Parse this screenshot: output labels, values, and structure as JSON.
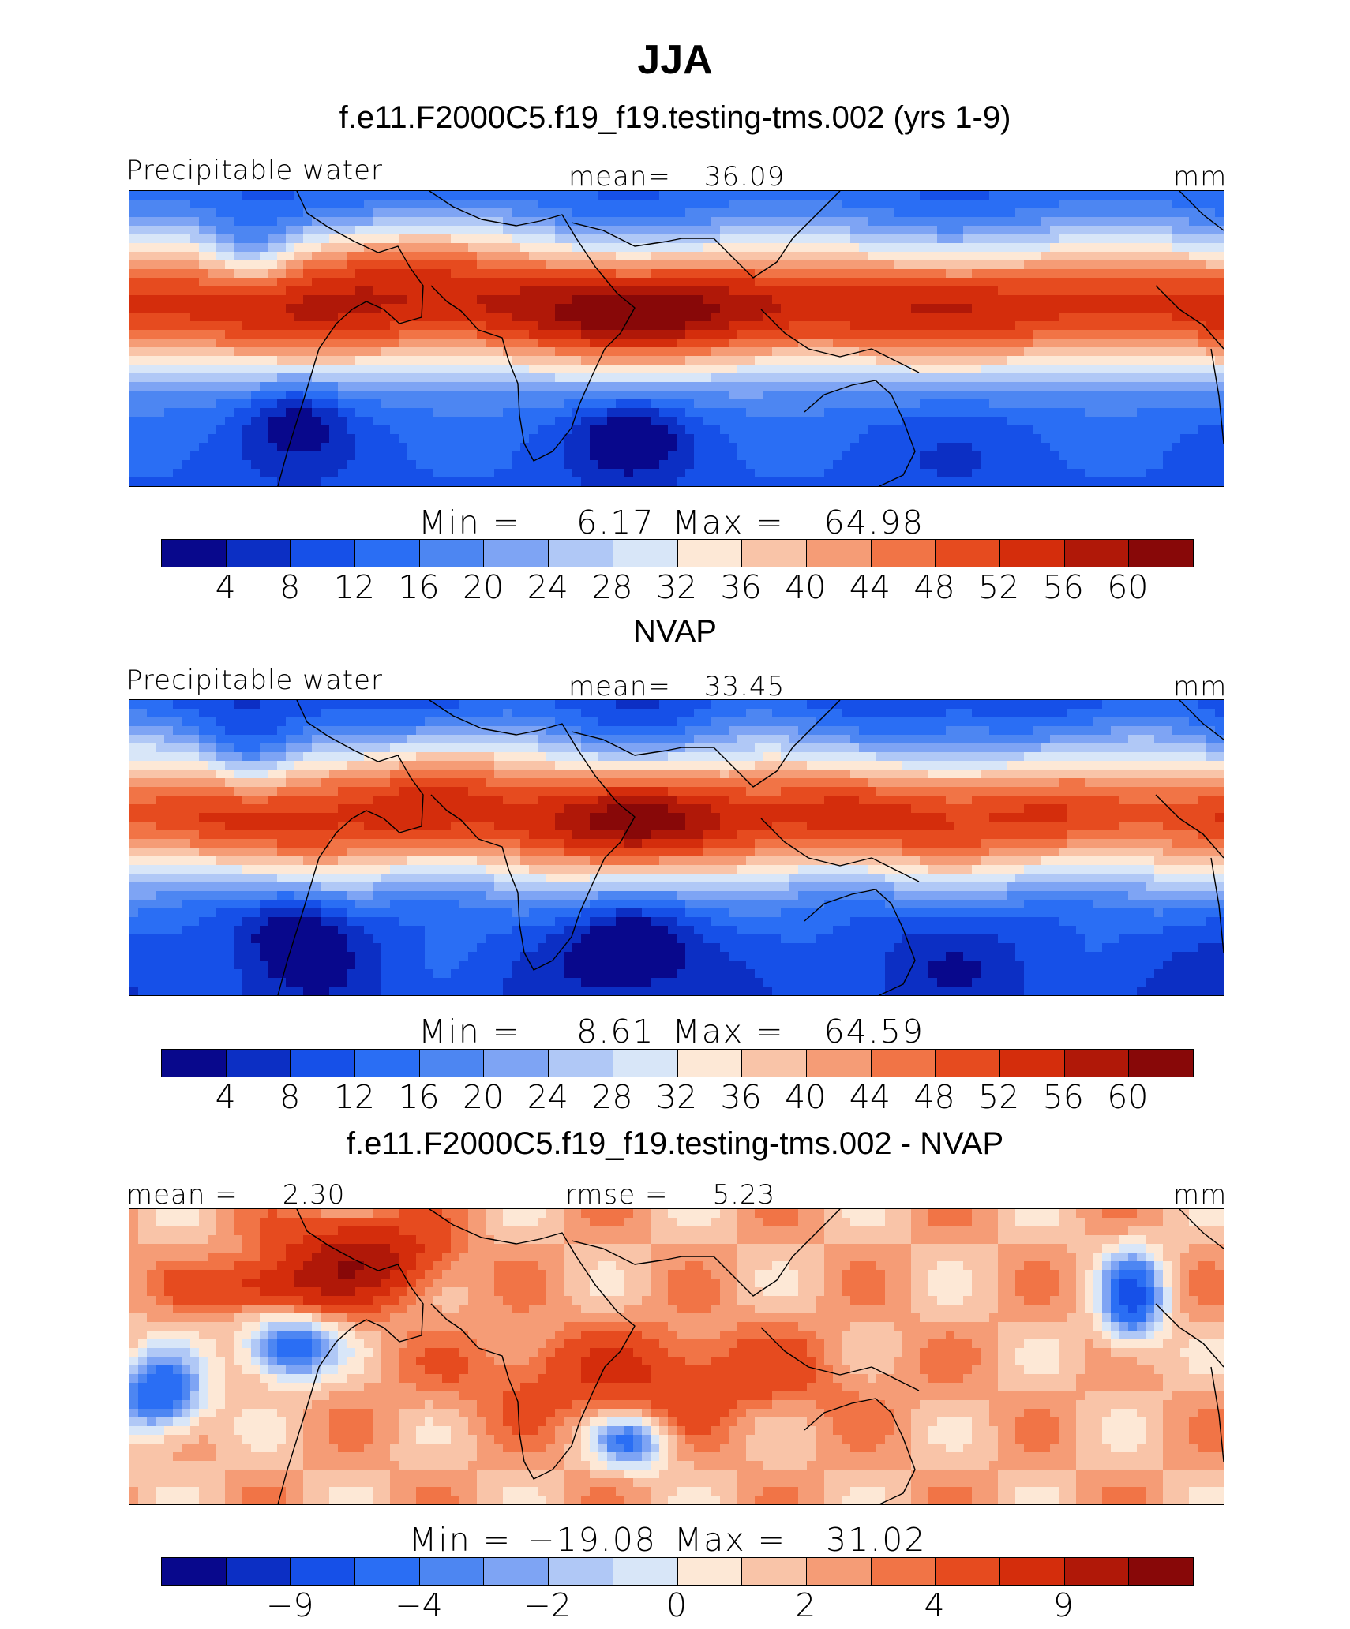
{
  "title": "JJA",
  "palette": [
    "#08088c",
    "#0c2fc4",
    "#1650e8",
    "#2a6ef4",
    "#4d86f2",
    "#7ea4f4",
    "#b0c8f6",
    "#d8e6f8",
    "#fde8d6",
    "#f9c4a8",
    "#f59c76",
    "#f17446",
    "#e64b1f",
    "#d42d0c",
    "#b01808",
    "#880808"
  ],
  "chart_data": [
    {
      "type": "heatmap",
      "panel_title": "f.e11.F2000C5.f19_f19.testing-tms.002 (yrs 1-9)",
      "variable": "Precipitable water",
      "stat_label": "mean=",
      "stat_value": "36.09",
      "units": "mm",
      "min_label": "Min =",
      "min_value": "6.17",
      "max_label": "Max =",
      "max_value": "64.98",
      "colorbar_levels": [
        "4",
        "8",
        "12",
        "16",
        "20",
        "24",
        "28",
        "32",
        "36",
        "40",
        "44",
        "48",
        "52",
        "56",
        "60"
      ]
    },
    {
      "type": "heatmap",
      "panel_title": "NVAP",
      "variable": "Precipitable water",
      "stat_label": "mean=",
      "stat_value": "33.45",
      "units": "mm",
      "min_label": "Min =",
      "min_value": "8.61",
      "max_label": "Max =",
      "max_value": "64.59",
      "colorbar_levels": [
        "4",
        "8",
        "12",
        "16",
        "20",
        "24",
        "28",
        "32",
        "36",
        "40",
        "44",
        "48",
        "52",
        "56",
        "60"
      ]
    },
    {
      "type": "heatmap",
      "panel_title": "f.e11.F2000C5.f19_f19.testing-tms.002 - NVAP",
      "stat_label": "mean =",
      "stat_value": "2.30",
      "stat2_label": "rmse =",
      "stat2_value": "5.23",
      "units": "mm",
      "min_label": "Min =",
      "min_value": "−19.08",
      "max_label": "Max =",
      "max_value": "31.02",
      "colorbar_levels": [
        "",
        "−9",
        "",
        "−4",
        "",
        "−2",
        "",
        "0",
        "",
        "2",
        "",
        "4",
        "",
        "9",
        ""
      ]
    }
  ]
}
